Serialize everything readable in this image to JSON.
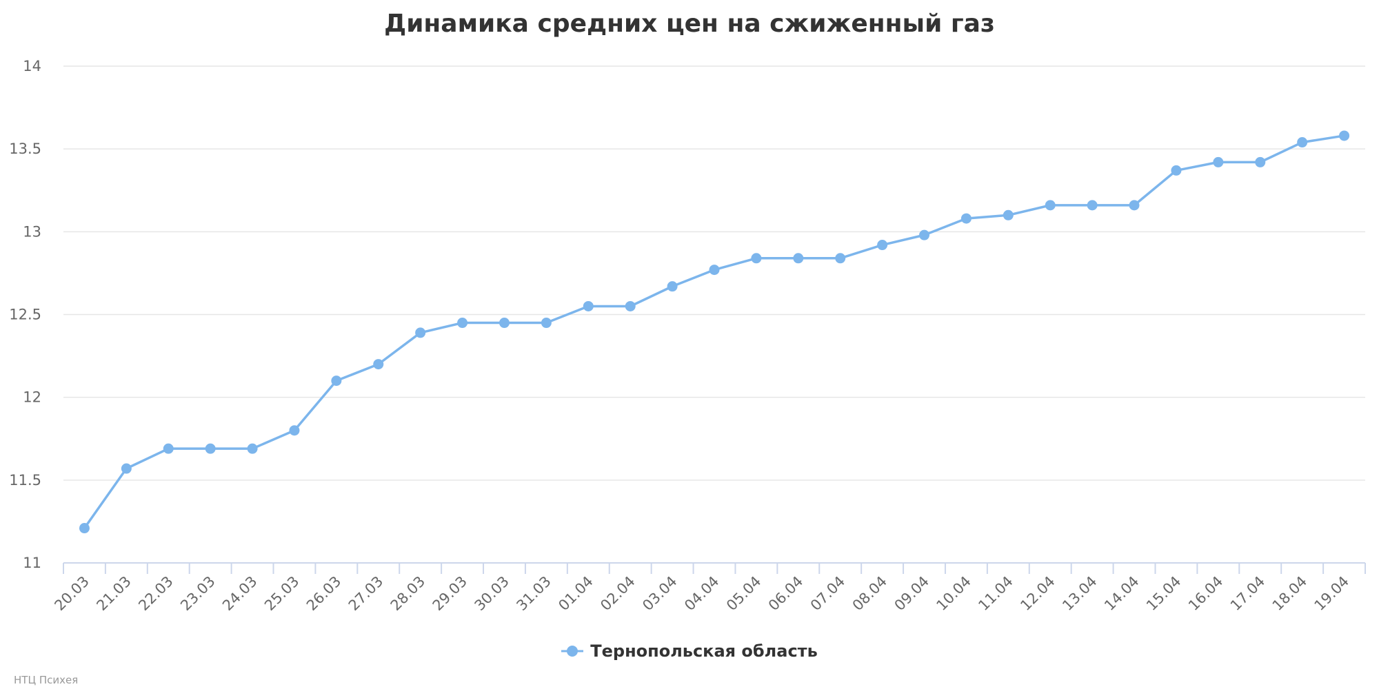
{
  "chart_data": {
    "type": "line",
    "title": "Динамика средних цен на сжиженный газ",
    "xlabel": "",
    "ylabel": "",
    "categories": [
      "20.03",
      "21.03",
      "22.03",
      "23.03",
      "24.03",
      "25.03",
      "26.03",
      "27.03",
      "28.03",
      "29.03",
      "30.03",
      "31.03",
      "01.04",
      "02.04",
      "03.04",
      "04.04",
      "05.04",
      "06.04",
      "07.04",
      "08.04",
      "09.04",
      "10.04",
      "11.04",
      "12.04",
      "13.04",
      "14.04",
      "15.04",
      "16.04",
      "17.04",
      "18.04",
      "19.04"
    ],
    "series": [
      {
        "name": "Тернопольская область",
        "values": [
          11.21,
          11.57,
          11.69,
          11.69,
          11.69,
          11.8,
          12.1,
          12.2,
          12.39,
          12.45,
          12.45,
          12.45,
          12.55,
          12.55,
          12.67,
          12.77,
          12.84,
          12.84,
          12.84,
          12.92,
          12.98,
          13.08,
          13.1,
          13.16,
          13.16,
          13.16,
          13.37,
          13.42,
          13.42,
          13.54,
          13.58
        ],
        "color": "#7cb5ec"
      }
    ],
    "ylim": [
      11,
      14
    ],
    "yticks": [
      11,
      11.5,
      12,
      12.5,
      13,
      13.5,
      14
    ],
    "grid": true,
    "legend": "bottom-center"
  },
  "credits": "НТЦ Психея"
}
